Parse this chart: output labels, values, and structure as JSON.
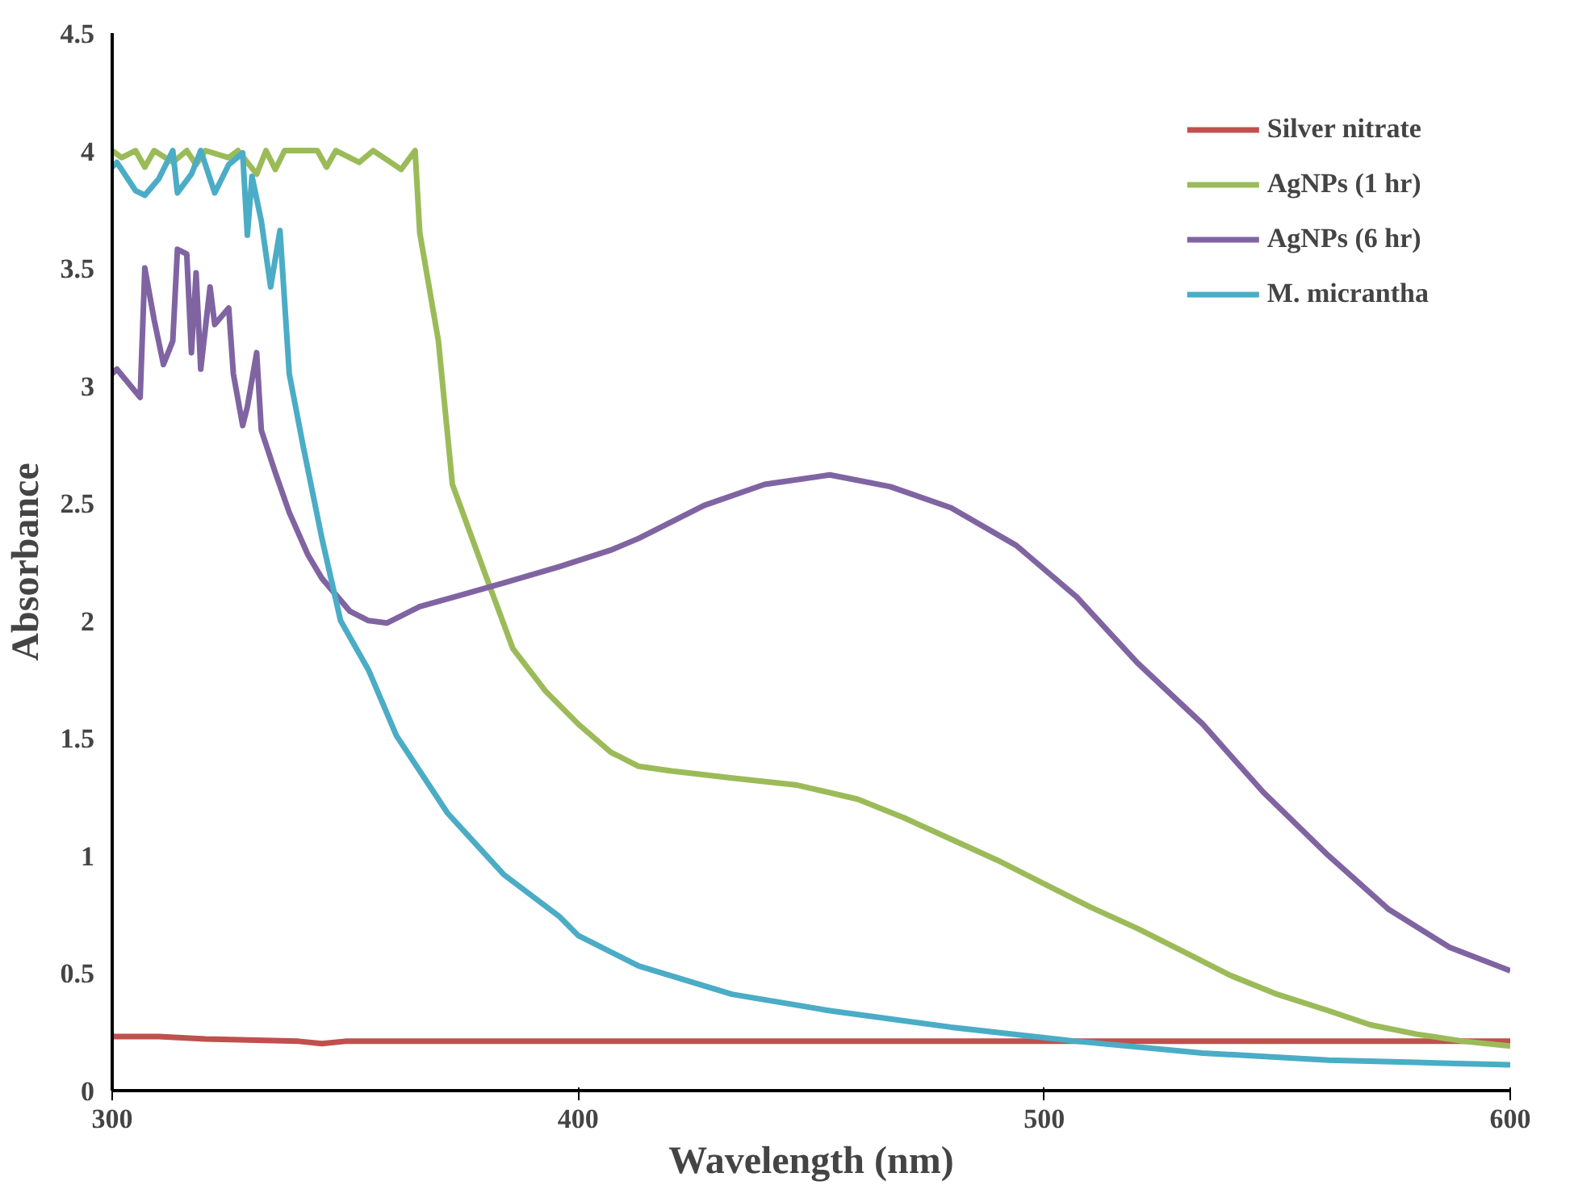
{
  "chart_data": {
    "type": "line",
    "xlabel": "Wavelength (nm)",
    "ylabel": "Absorbance",
    "xlim": [
      300,
      600
    ],
    "ylim": [
      0,
      4.5
    ],
    "xticks": [
      300,
      400,
      500,
      600
    ],
    "yticks": [
      0,
      0.5,
      1,
      1.5,
      2,
      2.5,
      3,
      3.5,
      4,
      4.5
    ],
    "grid": false,
    "legend": "top right",
    "marker": "none",
    "line_style": "solid",
    "series": [
      {
        "name": "Silver nitrate",
        "color": "#c0504d",
        "x": [
          300,
          310,
          320,
          340,
          345,
          350,
          355,
          400,
          450,
          500,
          550,
          600
        ],
        "values": [
          0.23,
          0.23,
          0.22,
          0.21,
          0.2,
          0.21,
          0.21,
          0.21,
          0.21,
          0.21,
          0.21,
          0.21
        ]
      },
      {
        "name": "AgNPs (1 hr)",
        "color": "#9bbb59",
        "x": [
          300,
          302,
          305,
          307,
          309,
          313,
          316,
          318,
          320,
          325,
          327,
          331,
          333,
          335,
          337,
          344,
          346,
          348,
          353,
          356,
          359,
          362,
          365,
          366,
          370,
          373,
          380,
          386,
          393,
          400,
          407,
          413,
          420,
          433,
          447,
          460,
          470,
          480,
          490,
          500,
          510,
          520,
          530,
          540,
          550,
          561,
          570,
          580,
          590,
          600
        ],
        "values": [
          4.0,
          3.97,
          4.0,
          3.93,
          4.0,
          3.95,
          4.0,
          3.94,
          4.0,
          3.97,
          4.0,
          3.9,
          4.0,
          3.92,
          4.0,
          4.0,
          3.93,
          4.0,
          3.95,
          4.0,
          3.96,
          3.92,
          4.0,
          3.65,
          3.19,
          2.58,
          2.2,
          1.88,
          1.7,
          1.56,
          1.44,
          1.38,
          1.36,
          1.33,
          1.3,
          1.24,
          1.16,
          1.07,
          0.98,
          0.88,
          0.78,
          0.69,
          0.59,
          0.49,
          0.41,
          0.34,
          0.28,
          0.24,
          0.21,
          0.19
        ]
      },
      {
        "name": "AgNPs (6 hr)",
        "color": "#8064a2",
        "x": [
          300,
          301,
          306,
          307,
          309,
          311,
          313,
          314,
          316,
          317,
          318,
          319,
          321,
          322,
          325,
          326,
          328,
          329,
          331,
          332,
          335,
          338,
          342,
          345,
          351,
          355,
          359,
          366,
          375,
          384,
          396,
          407,
          413,
          427,
          440,
          454,
          467,
          480,
          494,
          507,
          520,
          534,
          547,
          561,
          574,
          587,
          600
        ],
        "values": [
          3.05,
          3.07,
          2.95,
          3.5,
          3.28,
          3.09,
          3.19,
          3.58,
          3.56,
          3.14,
          3.48,
          3.07,
          3.42,
          3.26,
          3.33,
          3.05,
          2.83,
          2.91,
          3.14,
          2.81,
          2.63,
          2.46,
          2.28,
          2.18,
          2.04,
          2.0,
          1.99,
          2.06,
          2.11,
          2.16,
          2.23,
          2.3,
          2.35,
          2.49,
          2.58,
          2.62,
          2.57,
          2.48,
          2.32,
          2.1,
          1.82,
          1.56,
          1.27,
          1.0,
          0.77,
          0.61,
          0.51
        ]
      },
      {
        "name": "M. micrantha",
        "color": "#4bacc6",
        "x": [
          300,
          301,
          305,
          307,
          310,
          313,
          314,
          317,
          319,
          322,
          325,
          328,
          329,
          330,
          332,
          334,
          336,
          338,
          341,
          345,
          349,
          355,
          361,
          372,
          384,
          396,
          400,
          413,
          433,
          454,
          480,
          507,
          534,
          561,
          580,
          600
        ],
        "values": [
          3.93,
          3.95,
          3.83,
          3.81,
          3.88,
          4.0,
          3.82,
          3.9,
          4.0,
          3.82,
          3.94,
          3.99,
          3.64,
          3.89,
          3.7,
          3.42,
          3.66,
          3.05,
          2.74,
          2.35,
          2.0,
          1.79,
          1.51,
          1.18,
          0.92,
          0.74,
          0.66,
          0.53,
          0.41,
          0.34,
          0.27,
          0.21,
          0.16,
          0.13,
          0.12,
          0.11
        ]
      }
    ]
  }
}
